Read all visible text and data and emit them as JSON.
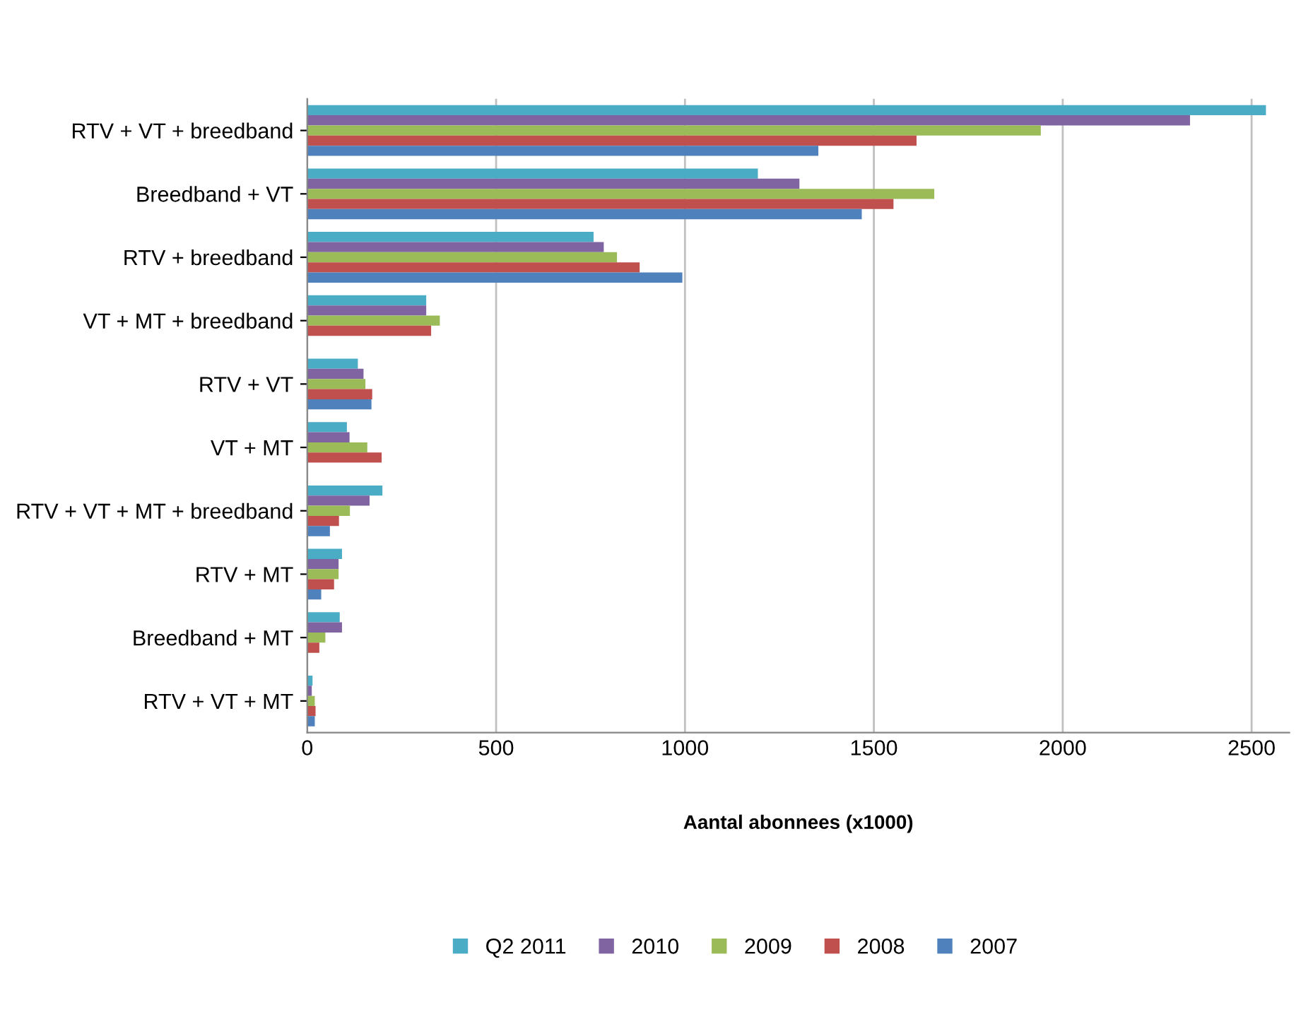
{
  "chart_data": {
    "type": "bar",
    "orientation": "horizontal",
    "xlabel": "Aantal abonnees (x1000)",
    "categories": [
      "RTV + VT + breedband",
      "Breedband + VT",
      "RTV + breedband",
      "VT + MT + breedband",
      "RTV + VT",
      "VT + MT",
      "RTV + VT + MT + breedband",
      "RTV + MT",
      "Breedband + MT",
      "RTV + VT + MT"
    ],
    "series": [
      {
        "name": "Q2 2011",
        "color": "#4bacc6",
        "values": [
          2538,
          1193,
          758,
          315,
          134,
          105,
          199,
          92,
          86,
          14
        ]
      },
      {
        "name": "2010",
        "color": "#8064a2",
        "values": [
          2337,
          1303,
          785,
          315,
          149,
          112,
          165,
          83,
          92,
          12
        ]
      },
      {
        "name": "2009",
        "color": "#9bbb59",
        "values": [
          1942,
          1660,
          820,
          351,
          154,
          159,
          113,
          83,
          48,
          20
        ]
      },
      {
        "name": "2008",
        "color": "#c0504d",
        "values": [
          1613,
          1552,
          880,
          328,
          172,
          197,
          84,
          71,
          32,
          22
        ]
      },
      {
        "name": "2007",
        "color": "#4f81bd",
        "values": [
          1353,
          1468,
          993,
          null,
          170,
          null,
          60,
          37,
          null,
          20
        ]
      }
    ],
    "xlim": [
      0,
      2600
    ],
    "xticks": [
      0,
      500,
      1000,
      1500,
      2000,
      2500
    ],
    "grid": "x",
    "legend": "bottom"
  }
}
